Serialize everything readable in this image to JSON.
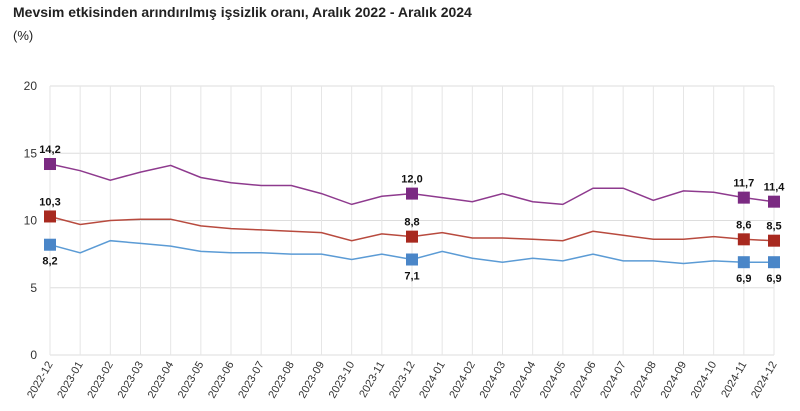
{
  "title": "Mevsim etkisinden arındırılmış işsizlik oranı, Aralık 2022 - Aralık 2024",
  "subtitle": "(%)",
  "chart_data": {
    "type": "line",
    "title": "Mevsim etkisinden arındırılmış işsizlik oranı, Aralık 2022 - Aralık 2024",
    "subtitle": "(%)",
    "xlabel": "",
    "ylabel": "",
    "ylim": [
      0,
      20
    ],
    "yticks": [
      0,
      5,
      10,
      15,
      20
    ],
    "grid": true,
    "legend": "none",
    "categories": [
      "2022-12",
      "2023-01",
      "2023-02",
      "2023-03",
      "2023-04",
      "2023-05",
      "2023-06",
      "2023-07",
      "2023-08",
      "2023-09",
      "2023-10",
      "2023-11",
      "2023-12",
      "2024-01",
      "2024-02",
      "2024-03",
      "2024-04",
      "2024-05",
      "2024-06",
      "2024-07",
      "2024-08",
      "2024-09",
      "2024-10",
      "2024-11",
      "2024-12"
    ],
    "series": [
      {
        "color": "#8e3a8e",
        "marker_color": "#7b2a82",
        "values": [
          14.2,
          13.7,
          13.0,
          13.6,
          14.1,
          13.2,
          12.8,
          12.6,
          12.6,
          12.0,
          11.2,
          11.8,
          12.0,
          11.7,
          11.4,
          12.0,
          11.4,
          11.2,
          12.4,
          12.4,
          11.5,
          12.2,
          12.1,
          11.7,
          11.4
        ],
        "labels": [
          {
            "index": 0,
            "text": "14,2",
            "pos": "above"
          },
          {
            "index": 12,
            "text": "12,0",
            "pos": "above"
          },
          {
            "index": 23,
            "text": "11,7",
            "pos": "above"
          },
          {
            "index": 24,
            "text": "11,4",
            "pos": "above"
          }
        ]
      },
      {
        "color": "#b84a3e",
        "marker_color": "#a8291f",
        "values": [
          10.3,
          9.7,
          10.0,
          10.1,
          10.1,
          9.6,
          9.4,
          9.3,
          9.2,
          9.1,
          8.5,
          9.0,
          8.8,
          9.1,
          8.7,
          8.7,
          8.6,
          8.5,
          9.2,
          8.9,
          8.6,
          8.6,
          8.8,
          8.6,
          8.5
        ],
        "labels": [
          {
            "index": 0,
            "text": "10,3",
            "pos": "above"
          },
          {
            "index": 12,
            "text": "8,8",
            "pos": "above"
          },
          {
            "index": 23,
            "text": "8,6",
            "pos": "above"
          },
          {
            "index": 24,
            "text": "8,5",
            "pos": "above"
          }
        ]
      },
      {
        "color": "#5b9bd5",
        "marker_color": "#4a86c8",
        "values": [
          8.2,
          7.6,
          8.5,
          8.3,
          8.1,
          7.7,
          7.6,
          7.6,
          7.5,
          7.5,
          7.1,
          7.5,
          7.1,
          7.7,
          7.2,
          6.9,
          7.2,
          7.0,
          7.5,
          7.0,
          7.0,
          6.8,
          7.0,
          6.9,
          6.9
        ],
        "labels": [
          {
            "index": 0,
            "text": "8,2",
            "pos": "below"
          },
          {
            "index": 12,
            "text": "7,1",
            "pos": "below"
          },
          {
            "index": 23,
            "text": "6,9",
            "pos": "below"
          },
          {
            "index": 24,
            "text": "6,9",
            "pos": "below"
          }
        ]
      }
    ]
  }
}
